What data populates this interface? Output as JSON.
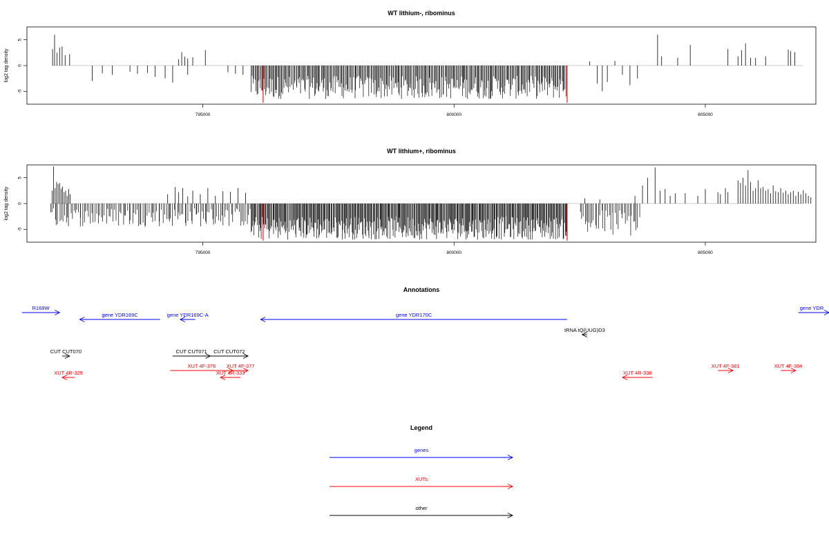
{
  "chart_data": [
    {
      "type": "bar",
      "title": "WT lithium-, ribominus",
      "ylabel": "log2 tag density",
      "xlabel": "",
      "x_range": [
        791500,
        807200
      ],
      "ylim": [
        -7.5,
        7.5
      ],
      "xticks": [
        795000,
        800000,
        805000
      ],
      "yticks": [
        -5,
        0,
        5
      ],
      "tick_labels": {
        "x": [
          "795000",
          "800000",
          "805000"
        ],
        "y": [
          "-5",
          "0",
          "5"
        ]
      },
      "bar_color": "#000000",
      "highlight_color": "#ff0000",
      "highlight_positions": [
        796200,
        802250
      ],
      "highlight_values": [
        -7.2,
        -7.2
      ],
      "series": [
        {
          "note_positions": "x positions (bp) of positive bars",
          "x": [
            792010,
            792050,
            792100,
            792150,
            792200,
            792260,
            792350,
            794520,
            794580,
            794640,
            794700,
            794800,
            795050,
            804050,
            804130,
            804450,
            804700,
            805450,
            805650,
            805720,
            805800,
            805900,
            806000,
            806200,
            806650,
            806700,
            806780,
            802700,
            803200
          ],
          "values": [
            3.2,
            6.0,
            2.5,
            3.5,
            3.7,
            2.0,
            2.2,
            1.2,
            2.6,
            1.7,
            1.4,
            1.6,
            3.0,
            6.0,
            1.8,
            1.5,
            4.0,
            3.2,
            1.8,
            3.0,
            4.3,
            1.5,
            1.5,
            1.8,
            3.1,
            2.8,
            2.6,
            0.8,
            0.9
          ]
        },
        {
          "x": [
            792800,
            793000,
            793200,
            793550,
            793700,
            793900,
            794050,
            794250,
            794400,
            794700,
            795500,
            795650,
            795800,
            802850,
            802950,
            803050,
            803350,
            803500,
            803650
          ],
          "values": [
            -3.0,
            -1.5,
            -1.8,
            -1.2,
            -1.6,
            -1.4,
            -2.2,
            -2.5,
            -3.3,
            -1.8,
            -1.3,
            -1.6,
            -1.8,
            -3.5,
            -5.0,
            -3.2,
            -1.8,
            -3.8,
            -2.5
          ]
        }
      ],
      "dense_regions": [
        {
          "from": 795950,
          "to": 802250,
          "min": -6.5,
          "max": -2.0,
          "count": 330
        }
      ]
    },
    {
      "type": "bar",
      "title": "WT lithium+, ribominus",
      "ylabel": "log2 tag density",
      "xlabel": "",
      "x_range": [
        791500,
        807200
      ],
      "ylim": [
        -7.5,
        7.5
      ],
      "xticks": [
        795000,
        800000,
        805000
      ],
      "yticks": [
        -5,
        0,
        5
      ],
      "tick_labels": {
        "x": [
          "795000",
          "800000",
          "805000"
        ],
        "y": [
          "-5",
          "0",
          "5"
        ]
      },
      "bar_color": "#000000",
      "highlight_color": "#ff0000",
      "highlight_positions": [
        796200,
        802250
      ],
      "highlight_values": [
        -7.2,
        -7.2
      ],
      "series": [
        {
          "x": [
            792000,
            792030,
            792060,
            792090,
            792120,
            792150,
            792180,
            792210,
            792240,
            792270,
            792300,
            792330,
            792360,
            794300,
            794450,
            794520,
            794600,
            794700,
            794800,
            794950,
            795100,
            795250,
            795400,
            795550,
            795700,
            795850,
            802600,
            802900,
            803600,
            803750,
            803850,
            804000,
            804100,
            804200,
            804300,
            804400,
            804600,
            804850,
            805000,
            805250,
            805300,
            805400,
            805450,
            805650,
            805700,
            805750,
            805800,
            805850,
            805900,
            805950,
            806000,
            806050,
            806100,
            806150,
            806200,
            806250,
            806300,
            806350,
            806400,
            806450,
            806500,
            806550,
            806600,
            806650,
            806700,
            806750,
            806800,
            806850,
            806900,
            806950,
            807000,
            807050,
            807100
          ],
          "values": [
            2.5,
            7.2,
            3.0,
            4.2,
            3.8,
            4.0,
            2.9,
            3.3,
            2.2,
            2.5,
            1.5,
            2.8,
            1.8,
            1.8,
            3.2,
            2.2,
            3.0,
            1.4,
            2.5,
            1.8,
            3.0,
            1.5,
            2.4,
            2.3,
            3.0,
            2.1,
            1.0,
            0.8,
            1.5,
            3.5,
            5.0,
            7.0,
            2.5,
            2.8,
            1.5,
            2.0,
            2.0,
            1.5,
            2.8,
            2.2,
            1.8,
            3.0,
            2.2,
            4.5,
            4.0,
            5.0,
            3.5,
            6.5,
            4.2,
            2.5,
            3.0,
            4.5,
            3.0,
            3.2,
            2.5,
            2.8,
            2.0,
            3.5,
            2.4,
            2.2,
            3.0,
            2.1,
            2.5,
            1.8,
            2.2,
            2.5,
            1.5,
            2.3,
            1.8,
            2.6,
            2.0,
            1.5,
            1.2
          ]
        }
      ],
      "dense_regions": [
        {
          "from": 791950,
          "to": 795950,
          "min": -4.5,
          "max": -0.8,
          "count": 130
        },
        {
          "from": 795950,
          "to": 802250,
          "min": -7.0,
          "max": -2.5,
          "count": 420
        },
        {
          "from": 802500,
          "to": 803700,
          "min": -6.5,
          "max": -1.0,
          "count": 40
        }
      ]
    }
  ],
  "annotations": {
    "title": "Annotations",
    "items": [
      {
        "label": "R168W",
        "from": 791400,
        "to": 792150,
        "strand": "+",
        "row": 0,
        "color": "#0000ff"
      },
      {
        "label": "gene YDR169C",
        "from": 792550,
        "to": 794150,
        "strand": "-",
        "row": 1,
        "color": "#0000ff"
      },
      {
        "label": "gene YDR169C-A",
        "from": 794550,
        "to": 794850,
        "strand": "-",
        "row": 1,
        "color": "#0000ff"
      },
      {
        "label": "gene YDR170C",
        "from": 796150,
        "to": 802250,
        "strand": "-",
        "row": 1,
        "color": "#0000ff"
      },
      {
        "label": "gene YDR",
        "from": 806850,
        "to": 807700,
        "strand": "+",
        "row": 0,
        "color": "#0000ff"
      },
      {
        "label": "tRNA tQ(UUG)D3",
        "from": 802550,
        "to": 802650,
        "strand": "-",
        "row": 2,
        "color": "#000000"
      },
      {
        "label": "CUT CUT070",
        "from": 792200,
        "to": 792350,
        "strand": "+",
        "row": 3,
        "color": "#000000"
      },
      {
        "label": "CUT CUT071",
        "from": 794400,
        "to": 795150,
        "strand": "+",
        "row": 3,
        "color": "#000000"
      },
      {
        "label": "CUT CUT072",
        "from": 795150,
        "to": 795900,
        "strand": "+",
        "row": 3,
        "color": "#000000"
      },
      {
        "label": "XUT 4F-376",
        "from": 794350,
        "to": 795600,
        "strand": "+",
        "row": 4,
        "color": "#ff0000"
      },
      {
        "label": "XUT 4F-377",
        "from": 795600,
        "to": 795900,
        "strand": "+",
        "row": 4,
        "color": "#ff0000"
      },
      {
        "label": "XUT 4R-329",
        "from": 792200,
        "to": 792450,
        "strand": "-",
        "row": 5,
        "color": "#ff0000"
      },
      {
        "label": "XUT 4R-333",
        "from": 795350,
        "to": 795750,
        "strand": "-",
        "row": 5,
        "color": "#ff0000"
      },
      {
        "label": "XUT 4R-336",
        "from": 803350,
        "to": 803950,
        "strand": "-",
        "row": 5,
        "color": "#ff0000"
      },
      {
        "label": "XUT 4F-381",
        "from": 805250,
        "to": 805550,
        "strand": "+",
        "row": 4,
        "color": "#ff0000"
      },
      {
        "label": "XUT 4F-384",
        "from": 806500,
        "to": 806800,
        "strand": "+",
        "row": 4,
        "color": "#ff0000"
      }
    ]
  },
  "legend": {
    "title": "Legend",
    "items": [
      {
        "label": "genes",
        "color": "#0000ff"
      },
      {
        "label": "XUTs",
        "color": "#ff0000"
      },
      {
        "label": "other",
        "color": "#000000"
      }
    ]
  }
}
